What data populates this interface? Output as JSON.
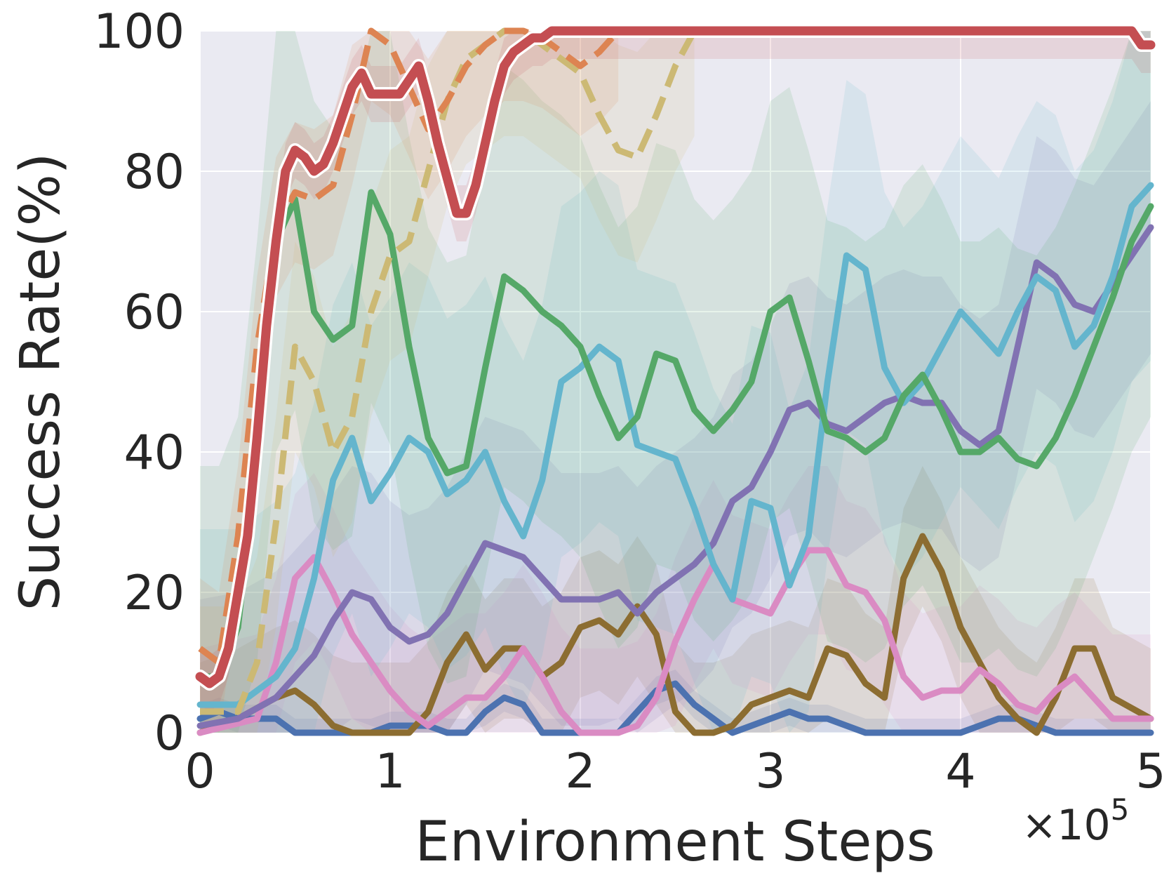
{
  "chart_data": {
    "type": "line",
    "xlabel": "Environment Steps",
    "ylabel": "Success Rate(%)",
    "x_multiplier": "×10",
    "x_multiplier_exp": "5",
    "xlim": [
      0,
      5
    ],
    "ylim": [
      0,
      100
    ],
    "x_ticks": [
      "0",
      "1",
      "2",
      "3",
      "4",
      "5"
    ],
    "y_ticks": [
      "0",
      "20",
      "40",
      "60",
      "80",
      "100"
    ],
    "grid": true,
    "background": "#eaeaf2",
    "series": [
      {
        "color": "#4c72b0",
        "dash": false,
        "band": 2,
        "x": [
          0,
          0.1,
          0.2,
          0.3,
          0.4,
          0.5,
          0.9,
          1.0,
          1.1,
          1.2,
          1.3,
          1.4,
          1.5,
          1.6,
          1.7,
          1.8,
          2.2,
          2.3,
          2.4,
          2.5,
          2.6,
          2.7,
          2.8,
          3.0,
          3.1,
          3.2,
          3.3,
          3.4,
          3.5,
          3.8,
          4.0,
          4.1,
          4.2,
          4.3,
          4.4,
          4.5,
          5.0
        ],
        "y": [
          2,
          3,
          2,
          2,
          2,
          0,
          0,
          1,
          1,
          1,
          0,
          0,
          3,
          5,
          4,
          0,
          0,
          3,
          6,
          7,
          4,
          2,
          0,
          2,
          3,
          2,
          2,
          1,
          0,
          0,
          0,
          1,
          2,
          2,
          1,
          0,
          0
        ]
      },
      {
        "color": "#8c6d31",
        "dash": false,
        "band": 10,
        "x": [
          0,
          0.2,
          0.4,
          0.5,
          0.6,
          0.7,
          0.8,
          1.0,
          1.1,
          1.2,
          1.3,
          1.4,
          1.5,
          1.6,
          1.7,
          1.8,
          1.9,
          2.0,
          2.1,
          2.2,
          2.3,
          2.4,
          2.5,
          2.6,
          2.7,
          2.8,
          2.9,
          3.0,
          3.1,
          3.2,
          3.3,
          3.4,
          3.5,
          3.6,
          3.7,
          3.8,
          3.9,
          4.0,
          4.1,
          4.2,
          4.3,
          4.4,
          4.5,
          4.6,
          4.7,
          4.8,
          5.0
        ],
        "y": [
          0,
          2,
          5,
          6,
          4,
          1,
          0,
          0,
          0,
          3,
          10,
          14,
          9,
          12,
          12,
          8,
          10,
          15,
          16,
          14,
          18,
          14,
          3,
          0,
          0,
          1,
          4,
          5,
          6,
          5,
          12,
          11,
          7,
          5,
          22,
          28,
          23,
          15,
          10,
          5,
          2,
          0,
          5,
          12,
          12,
          5,
          2
        ]
      },
      {
        "color": "#da8bc3",
        "dash": false,
        "band": 12,
        "x": [
          0,
          0.3,
          0.4,
          0.5,
          0.6,
          0.7,
          0.8,
          0.9,
          1.0,
          1.1,
          1.2,
          1.3,
          1.4,
          1.5,
          1.6,
          1.7,
          1.8,
          1.9,
          2.0,
          2.1,
          2.2,
          2.3,
          2.4,
          2.5,
          2.6,
          2.7,
          2.8,
          2.9,
          3.0,
          3.1,
          3.2,
          3.3,
          3.4,
          3.5,
          3.6,
          3.7,
          3.8,
          3.9,
          4.0,
          4.1,
          4.2,
          4.3,
          4.4,
          4.5,
          4.6,
          4.7,
          4.8,
          5.0
        ],
        "y": [
          0,
          2,
          10,
          22,
          25,
          20,
          14,
          10,
          6,
          3,
          1,
          3,
          5,
          5,
          8,
          12,
          8,
          3,
          0,
          0,
          0,
          1,
          5,
          13,
          19,
          24,
          19,
          18,
          17,
          22,
          26,
          26,
          21,
          20,
          16,
          8,
          5,
          6,
          6,
          9,
          7,
          4,
          3,
          6,
          8,
          5,
          2,
          2
        ]
      },
      {
        "color": "#8172b2",
        "dash": false,
        "band": 18,
        "x": [
          0,
          0.2,
          0.4,
          0.5,
          0.6,
          0.7,
          0.8,
          0.9,
          1.0,
          1.1,
          1.2,
          1.3,
          1.4,
          1.5,
          1.6,
          1.7,
          1.8,
          1.9,
          2.0,
          2.1,
          2.2,
          2.3,
          2.4,
          2.5,
          2.6,
          2.7,
          2.8,
          2.9,
          3.0,
          3.1,
          3.2,
          3.3,
          3.4,
          3.5,
          3.6,
          3.7,
          3.8,
          3.9,
          4.0,
          4.1,
          4.2,
          4.3,
          4.4,
          4.5,
          4.6,
          4.7,
          4.8,
          4.9,
          5.0
        ],
        "y": [
          1,
          2,
          5,
          8,
          11,
          16,
          20,
          19,
          15,
          13,
          14,
          17,
          22,
          27,
          26,
          25,
          22,
          19,
          19,
          19,
          20,
          17,
          20,
          22,
          24,
          27,
          33,
          35,
          40,
          46,
          47,
          44,
          43,
          45,
          47,
          48,
          47,
          47,
          43,
          41,
          43,
          55,
          67,
          65,
          61,
          60,
          64,
          68,
          72
        ]
      },
      {
        "color": "#64b5cd",
        "dash": false,
        "band": 25,
        "x": [
          0,
          0.2,
          0.3,
          0.4,
          0.5,
          0.6,
          0.7,
          0.8,
          0.9,
          1.0,
          1.1,
          1.2,
          1.3,
          1.4,
          1.5,
          1.6,
          1.7,
          1.8,
          1.9,
          2.0,
          2.1,
          2.2,
          2.3,
          2.4,
          2.5,
          2.6,
          2.7,
          2.8,
          2.9,
          3.0,
          3.1,
          3.2,
          3.3,
          3.4,
          3.5,
          3.6,
          3.7,
          3.8,
          3.9,
          4.0,
          4.1,
          4.2,
          4.3,
          4.4,
          4.5,
          4.6,
          4.7,
          4.8,
          4.9,
          5.0
        ],
        "y": [
          4,
          4,
          6,
          8,
          12,
          22,
          36,
          42,
          33,
          37,
          42,
          40,
          34,
          36,
          40,
          33,
          28,
          36,
          50,
          52,
          55,
          53,
          41,
          40,
          39,
          32,
          24,
          19,
          33,
          32,
          21,
          28,
          50,
          68,
          66,
          52,
          47,
          50,
          55,
          60,
          57,
          54,
          60,
          65,
          63,
          55,
          58,
          65,
          75,
          78
        ]
      },
      {
        "color": "#55a868",
        "dash": false,
        "band": 30,
        "x": [
          0,
          0.1,
          0.2,
          0.3,
          0.4,
          0.5,
          0.6,
          0.7,
          0.8,
          0.9,
          1.0,
          1.1,
          1.2,
          1.3,
          1.4,
          1.5,
          1.6,
          1.7,
          1.8,
          1.9,
          2.0,
          2.1,
          2.2,
          2.3,
          2.4,
          2.5,
          2.6,
          2.7,
          2.8,
          2.9,
          3.0,
          3.1,
          3.2,
          3.3,
          3.4,
          3.5,
          3.6,
          3.7,
          3.8,
          3.9,
          4.0,
          4.1,
          4.2,
          4.3,
          4.4,
          4.5,
          4.6,
          4.7,
          4.8,
          4.9,
          5.0
        ],
        "y": [
          8,
          8,
          15,
          40,
          70,
          76,
          60,
          56,
          58,
          77,
          71,
          55,
          42,
          37,
          38,
          52,
          65,
          63,
          60,
          58,
          55,
          48,
          42,
          45,
          54,
          53,
          46,
          43,
          46,
          50,
          60,
          62,
          53,
          43,
          42,
          40,
          42,
          48,
          51,
          46,
          40,
          40,
          42,
          39,
          38,
          42,
          48,
          55,
          62,
          70,
          75
        ]
      },
      {
        "color": "#ccb974",
        "dash": true,
        "band": 15,
        "x": [
          0,
          0.2,
          0.3,
          0.4,
          0.5,
          0.6,
          0.7,
          0.8,
          0.9,
          1.0,
          1.1,
          1.2,
          1.3,
          1.4,
          1.5,
          1.6,
          1.7,
          1.8,
          1.9,
          2.0,
          2.1,
          2.2,
          2.3,
          2.4,
          2.5,
          2.6
        ],
        "y": [
          3,
          3,
          10,
          30,
          55,
          50,
          40,
          45,
          60,
          68,
          70,
          80,
          90,
          96,
          98,
          100,
          100,
          98,
          96,
          94,
          88,
          83,
          82,
          88,
          95,
          100
        ]
      },
      {
        "color": "#dd8452",
        "dash": true,
        "band": 10,
        "x": [
          0,
          0.1,
          0.2,
          0.3,
          0.4,
          0.5,
          0.6,
          0.7,
          0.8,
          0.9,
          1.0,
          1.1,
          1.2,
          1.3,
          1.4,
          1.5,
          1.6,
          1.7,
          1.8,
          1.9,
          2.0,
          2.1,
          2.2
        ],
        "y": [
          12,
          10,
          28,
          55,
          72,
          77,
          76,
          78,
          88,
          100,
          98,
          92,
          86,
          90,
          95,
          98,
          100,
          100,
          99,
          97,
          95,
          97,
          100
        ]
      },
      {
        "color": "#c44e52",
        "dash": false,
        "band": 4,
        "highlight": true,
        "x": [
          0,
          0.05,
          0.1,
          0.15,
          0.2,
          0.25,
          0.3,
          0.35,
          0.4,
          0.45,
          0.5,
          0.55,
          0.6,
          0.65,
          0.7,
          0.75,
          0.8,
          0.85,
          0.9,
          0.95,
          1.0,
          1.05,
          1.1,
          1.15,
          1.2,
          1.25,
          1.3,
          1.35,
          1.4,
          1.45,
          1.5,
          1.55,
          1.6,
          1.65,
          1.7,
          1.75,
          1.8,
          1.85,
          1.9,
          2.0,
          2.5,
          3.0,
          3.5,
          4.0,
          4.5,
          4.9,
          4.95,
          5.0
        ],
        "y": [
          8,
          7,
          8,
          12,
          20,
          28,
          42,
          58,
          70,
          80,
          83,
          82,
          80,
          81,
          84,
          88,
          92,
          94,
          91,
          91,
          91,
          91,
          93,
          95,
          90,
          84,
          79,
          74,
          74,
          78,
          84,
          90,
          95,
          97,
          98,
          99,
          99,
          100,
          100,
          100,
          100,
          100,
          100,
          100,
          100,
          100,
          98,
          98
        ]
      }
    ]
  }
}
